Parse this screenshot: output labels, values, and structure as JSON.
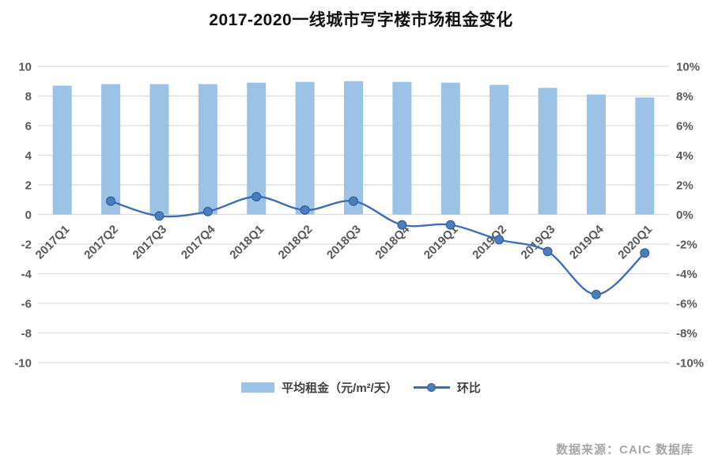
{
  "title": "2017-2020一线城市写字楼市场租金变化",
  "source": "数据来源：CAIC 数据库",
  "legend": {
    "bar_label": "平均租金（元/m²/天）",
    "line_label": "环比"
  },
  "colors": {
    "bar": "#9CC2E5",
    "line": "#3E6FB4",
    "dot_fill": "#4A7EBE",
    "dot_stroke": "#315F96",
    "grid": "#DCDCDC",
    "axis_text": "#595959",
    "title_text": "#111111",
    "source_text": "#A6A6A6"
  },
  "chart_data": {
    "type": "combo",
    "title": "2017-2020一线城市写字楼市场租金变化",
    "categories": [
      "2017Q1",
      "2017Q2",
      "2017Q3",
      "2017Q4",
      "2018Q1",
      "2018Q2",
      "2018Q3",
      "2018Q4",
      "2019Q1",
      "2019Q2",
      "2019Q3",
      "2019Q4",
      "2020Q1"
    ],
    "series": [
      {
        "name": "平均租金（元/m²/天）",
        "type": "bar",
        "axis": "left",
        "values": [
          8.7,
          8.8,
          8.8,
          8.8,
          8.9,
          8.95,
          9.0,
          8.95,
          8.9,
          8.75,
          8.55,
          8.1,
          7.9
        ]
      },
      {
        "name": "环比",
        "type": "line",
        "axis": "right",
        "unit": "%",
        "values": [
          null,
          0.9,
          -0.1,
          0.2,
          1.2,
          0.3,
          0.9,
          -0.7,
          -0.7,
          -1.7,
          -2.5,
          -5.4,
          -2.6
        ]
      }
    ],
    "left_axis": {
      "min": -10,
      "max": 10,
      "tick_labels": [
        "10",
        "8",
        "6",
        "4",
        "2",
        "0",
        "-2",
        "-4",
        "-6",
        "-8",
        "-10"
      ]
    },
    "right_axis": {
      "min": -10,
      "max": 10,
      "tick_labels": [
        "10%",
        "8%",
        "6%",
        "4%",
        "2%",
        "0%",
        "-2%",
        "-4%",
        "-6%",
        "-8%",
        "-10%"
      ]
    },
    "grid": true,
    "legend_position": "bottom"
  }
}
